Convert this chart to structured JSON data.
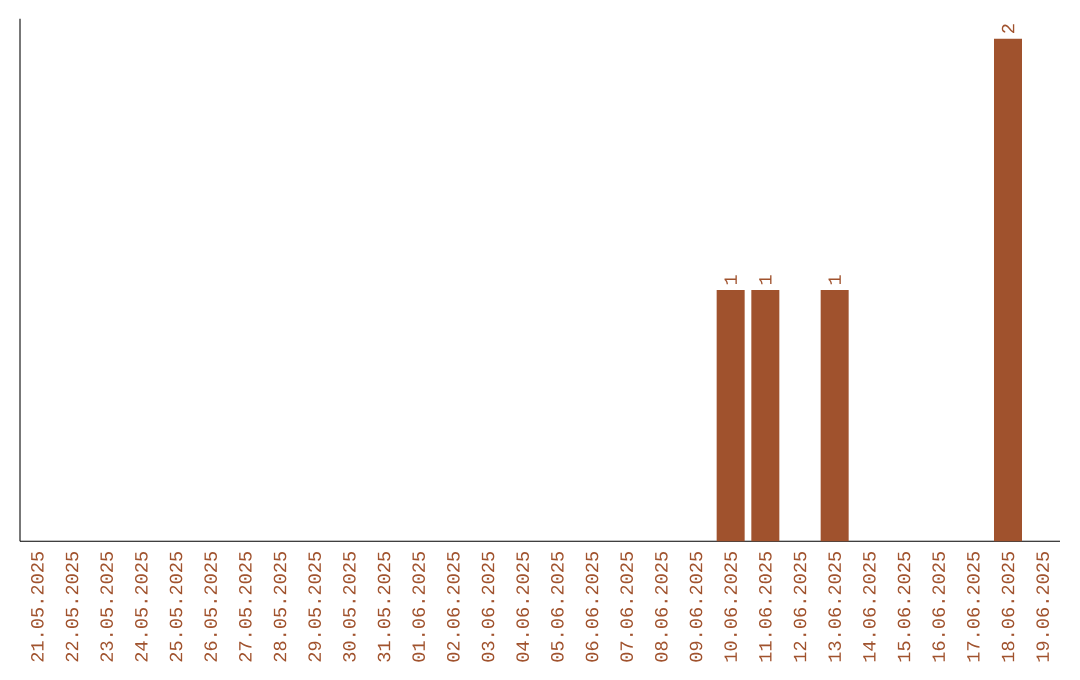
{
  "chart_data": {
    "type": "bar",
    "color": "#a0522d",
    "categories": [
      "21.05.2025",
      "22.05.2025",
      "23.05.2025",
      "24.05.2025",
      "25.05.2025",
      "26.05.2025",
      "27.05.2025",
      "28.05.2025",
      "29.05.2025",
      "30.05.2025",
      "31.05.2025",
      "01.06.2025",
      "02.06.2025",
      "03.06.2025",
      "04.06.2025",
      "05.06.2025",
      "06.06.2025",
      "07.06.2025",
      "08.06.2025",
      "09.06.2025",
      "10.06.2025",
      "11.06.2025",
      "12.06.2025",
      "13.06.2025",
      "14.06.2025",
      "15.06.2025",
      "16.06.2025",
      "17.06.2025",
      "18.06.2025",
      "19.06.2025"
    ],
    "values": [
      null,
      null,
      null,
      null,
      null,
      null,
      null,
      null,
      null,
      null,
      null,
      null,
      null,
      null,
      null,
      null,
      null,
      null,
      null,
      null,
      1,
      1,
      null,
      1,
      null,
      null,
      null,
      null,
      2,
      null
    ],
    "data_labels": true,
    "tick_labels": "x"
  }
}
